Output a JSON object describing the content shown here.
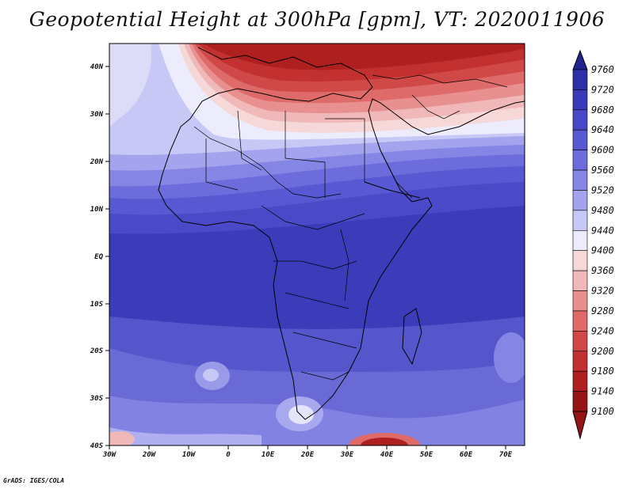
{
  "title": "Geopotential Height at 300hPa [gpm], VT: 2020011906",
  "credit": "GrADS: IGES/COLA",
  "map": {
    "region": "Africa",
    "lon_range": [
      -30,
      75
    ],
    "lat_range": [
      -40,
      45
    ],
    "lat_ticks": [
      "40N",
      "30N",
      "20N",
      "10N",
      "EQ",
      "10S",
      "20S",
      "30S",
      "40S"
    ],
    "lon_ticks": [
      "30W",
      "20W",
      "10W",
      "0",
      "10E",
      "20E",
      "30E",
      "40E",
      "50E",
      "60E",
      "70E"
    ]
  },
  "colorbar": {
    "levels": [
      "9760",
      "9720",
      "9680",
      "9640",
      "9600",
      "9560",
      "9520",
      "9480",
      "9440",
      "9400",
      "9360",
      "9320",
      "9280",
      "9240",
      "9200",
      "9180",
      "9140",
      "9100"
    ],
    "colors": [
      "#23238f",
      "#2e2ea6",
      "#3a3ab8",
      "#4848c6",
      "#5858d2",
      "#6c6cdc",
      "#8585e6",
      "#a3a3ee",
      "#c8c8f6",
      "#ececfc",
      "#f6d8d8",
      "#f0b8b8",
      "#e89090",
      "#de6a6a",
      "#d04848",
      "#c23030",
      "#ae2020",
      "#951414"
    ]
  }
}
